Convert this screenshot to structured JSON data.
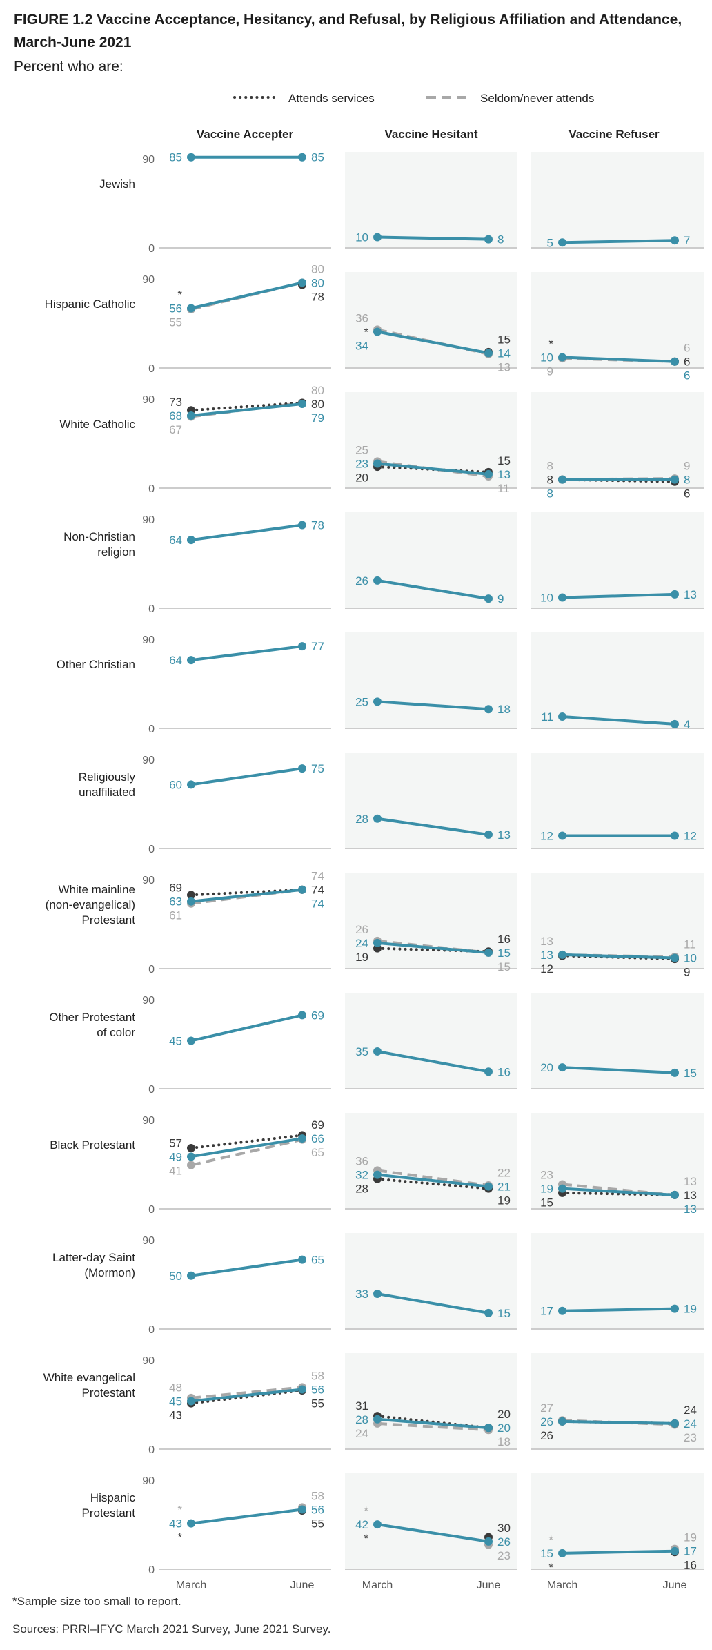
{
  "title": "FIGURE 1.2 Vaccine Acceptance, Hesitancy, and Refusal, by Religious Affiliation and Attendance, March-June 2021",
  "subtitle": "Percent who are:",
  "note": "*Sample size too small to report.",
  "source": "Sources: PRRI–IFYC March 2021 Survey, June 2021 Survey.",
  "colors": {
    "all": "#3a8fa8",
    "attends": "#3a3a3a",
    "seldom": "#a8a8a8",
    "panel_bg": "#f4f6f5",
    "axis": "#cccccc"
  },
  "chart_data": {
    "type": "line",
    "legend": {
      "placement": "top",
      "attends": "Attends services",
      "seldom": "Seldom/never attends"
    },
    "columns": [
      "Vaccine Accepter",
      "Vaccine Hesitant",
      "Vaccine Refuser"
    ],
    "x": [
      "March",
      "June"
    ],
    "ylim": [
      0,
      90
    ],
    "yticks": [
      "0",
      "90"
    ],
    "rows": [
      {
        "label": "Jewish",
        "panels": [
          {
            "all": [
              85,
              85
            ]
          },
          {
            "all": [
              10,
              8
            ]
          },
          {
            "all": [
              5,
              7
            ]
          }
        ]
      },
      {
        "label": "Hispanic Catholic",
        "panels": [
          {
            "all": [
              56,
              80
            ],
            "attends": [
              null,
              78
            ],
            "seldom": [
              55,
              80
            ],
            "attends_march": "*"
          },
          {
            "all": [
              34,
              14
            ],
            "attends": [
              null,
              15
            ],
            "seldom": [
              36,
              13
            ],
            "attends_march": "*"
          },
          {
            "all": [
              10,
              6
            ],
            "attends": [
              null,
              6
            ],
            "seldom": [
              9,
              6
            ],
            "attends_march": "*"
          }
        ]
      },
      {
        "label": "White Catholic",
        "panels": [
          {
            "all": [
              68,
              79
            ],
            "attends": [
              73,
              80
            ],
            "seldom": [
              67,
              80
            ]
          },
          {
            "all": [
              23,
              13
            ],
            "attends": [
              20,
              15
            ],
            "seldom": [
              25,
              11
            ]
          },
          {
            "all": [
              8,
              8
            ],
            "attends": [
              8,
              6
            ],
            "seldom": [
              8,
              9
            ]
          }
        ]
      },
      {
        "label": "Non-Christian religion",
        "panels": [
          {
            "all": [
              64,
              78
            ]
          },
          {
            "all": [
              26,
              9
            ]
          },
          {
            "all": [
              10,
              13
            ]
          }
        ]
      },
      {
        "label": "Other Christian",
        "panels": [
          {
            "all": [
              64,
              77
            ]
          },
          {
            "all": [
              25,
              18
            ]
          },
          {
            "all": [
              11,
              4
            ]
          }
        ]
      },
      {
        "label": "Religiously unaffiliated",
        "panels": [
          {
            "all": [
              60,
              75
            ]
          },
          {
            "all": [
              28,
              13
            ]
          },
          {
            "all": [
              12,
              12
            ]
          }
        ]
      },
      {
        "label": "White mainline (non-evangelical) Protestant",
        "panels": [
          {
            "all": [
              63,
              74
            ],
            "attends": [
              69,
              74
            ],
            "seldom": [
              61,
              74
            ]
          },
          {
            "all": [
              24,
              15
            ],
            "attends": [
              19,
              16
            ],
            "seldom": [
              26,
              15
            ]
          },
          {
            "all": [
              13,
              10
            ],
            "attends": [
              12,
              9
            ],
            "seldom": [
              13,
              11
            ]
          }
        ]
      },
      {
        "label": "Other Protestant of color",
        "panels": [
          {
            "all": [
              45,
              69
            ]
          },
          {
            "all": [
              35,
              16
            ]
          },
          {
            "all": [
              20,
              15
            ]
          }
        ]
      },
      {
        "label": "Black Protestant",
        "panels": [
          {
            "all": [
              49,
              66
            ],
            "attends": [
              57,
              69
            ],
            "seldom": [
              41,
              65
            ]
          },
          {
            "all": [
              32,
              21
            ],
            "attends": [
              28,
              19
            ],
            "seldom": [
              36,
              22
            ]
          },
          {
            "all": [
              19,
              13
            ],
            "attends": [
              15,
              13
            ],
            "seldom": [
              23,
              13
            ]
          }
        ]
      },
      {
        "label": "Latter-day Saint (Mormon)",
        "panels": [
          {
            "all": [
              50,
              65
            ]
          },
          {
            "all": [
              33,
              15
            ]
          },
          {
            "all": [
              17,
              19
            ]
          }
        ]
      },
      {
        "label": "White evangelical Protestant",
        "panels": [
          {
            "all": [
              45,
              56
            ],
            "attends": [
              43,
              55
            ],
            "seldom": [
              48,
              58
            ]
          },
          {
            "all": [
              28,
              20
            ],
            "attends": [
              31,
              20
            ],
            "seldom": [
              24,
              18
            ]
          },
          {
            "all": [
              26,
              24
            ],
            "attends": [
              26,
              24
            ],
            "seldom": [
              27,
              23
            ]
          }
        ]
      },
      {
        "label": "Hispanic Protestant",
        "panels": [
          {
            "all": [
              43,
              56
            ],
            "attends": [
              null,
              55
            ],
            "seldom": [
              null,
              58
            ],
            "attends_march": "*",
            "seldom_march": "*"
          },
          {
            "all": [
              42,
              26
            ],
            "attends": [
              null,
              30
            ],
            "seldom": [
              null,
              23
            ],
            "attends_march": "*",
            "seldom_march": "*"
          },
          {
            "all": [
              15,
              17
            ],
            "attends": [
              null,
              16
            ],
            "seldom": [
              null,
              19
            ],
            "attends_march": "*",
            "seldom_march": "*"
          }
        ]
      }
    ]
  }
}
